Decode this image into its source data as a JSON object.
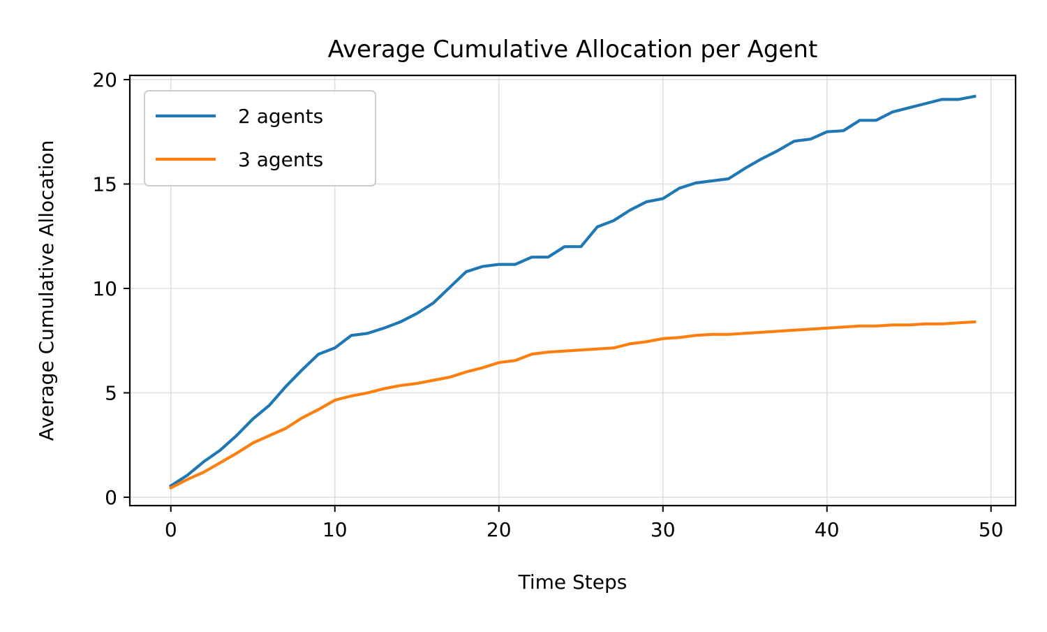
{
  "chart_data": {
    "type": "line",
    "title": "Average Cumulative Allocation per Agent",
    "xlabel": "Time Steps",
    "ylabel": "Average Cumulative Allocation",
    "xlim": [
      -2.5,
      51.5
    ],
    "ylim": [
      -0.4,
      20.2
    ],
    "xticks": [
      0,
      10,
      20,
      30,
      40,
      50
    ],
    "xtick_labels": [
      "0",
      "10",
      "20",
      "30",
      "40",
      "50"
    ],
    "yticks": [
      0,
      5,
      10,
      15,
      20
    ],
    "ytick_labels": [
      "0",
      "5",
      "10",
      "15",
      "20"
    ],
    "grid": true,
    "legend_position": "upper-left",
    "x": [
      0,
      1,
      2,
      3,
      4,
      5,
      6,
      7,
      8,
      9,
      10,
      11,
      12,
      13,
      14,
      15,
      16,
      17,
      18,
      19,
      20,
      21,
      22,
      23,
      24,
      25,
      26,
      27,
      28,
      29,
      30,
      31,
      32,
      33,
      34,
      35,
      36,
      37,
      38,
      39,
      40,
      41,
      42,
      43,
      44,
      45,
      46,
      47,
      48,
      49
    ],
    "series": [
      {
        "name": "2 agents",
        "color": "#1f77b4",
        "values": [
          0.55,
          1.05,
          1.7,
          2.25,
          2.95,
          3.75,
          4.4,
          5.3,
          6.1,
          6.85,
          7.15,
          7.75,
          7.85,
          8.1,
          8.4,
          8.8,
          9.3,
          10.05,
          10.8,
          11.05,
          11.15,
          11.15,
          11.5,
          11.5,
          12.0,
          12.0,
          12.95,
          13.25,
          13.75,
          14.15,
          14.3,
          14.8,
          15.05,
          15.15,
          15.25,
          15.75,
          16.2,
          16.6,
          17.05,
          17.15,
          17.5,
          17.55,
          18.05,
          18.05,
          18.45,
          18.65,
          18.85,
          19.05,
          19.05,
          19.2
        ]
      },
      {
        "name": "3 agents",
        "color": "#ff7f0e",
        "values": [
          0.45,
          0.85,
          1.2,
          1.65,
          2.1,
          2.6,
          2.95,
          3.3,
          3.8,
          4.2,
          4.65,
          4.85,
          5.0,
          5.2,
          5.35,
          5.45,
          5.6,
          5.75,
          6.0,
          6.2,
          6.45,
          6.55,
          6.85,
          6.95,
          7.0,
          7.05,
          7.1,
          7.15,
          7.35,
          7.45,
          7.6,
          7.65,
          7.75,
          7.8,
          7.8,
          7.85,
          7.9,
          7.95,
          8.0,
          8.05,
          8.1,
          8.15,
          8.2,
          8.2,
          8.25,
          8.25,
          8.3,
          8.3,
          8.35,
          8.4
        ]
      }
    ]
  }
}
